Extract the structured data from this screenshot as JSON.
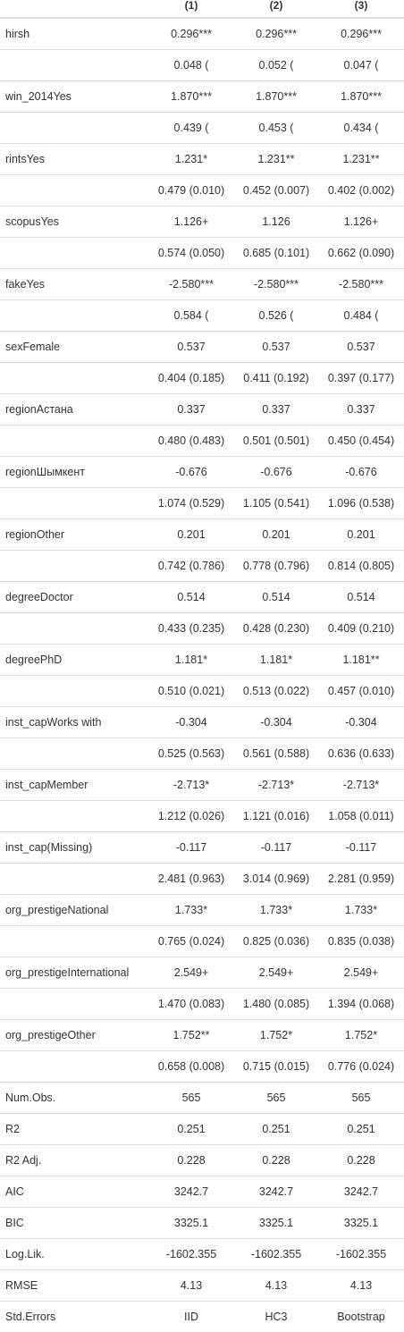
{
  "headers": [
    "",
    "(1)",
    "(2)",
    "(3)"
  ],
  "coef_rows": [
    {
      "label": "hirsh",
      "est": [
        "0.296***",
        "0.296***",
        "0.296***"
      ],
      "se": [
        "0.048 (",
        "0.052 (",
        "0.047 ("
      ]
    },
    {
      "label": "win_2014Yes",
      "est": [
        "1.870***",
        "1.870***",
        "1.870***"
      ],
      "se": [
        "0.439 (",
        "0.453 (",
        "0.434 ("
      ]
    },
    {
      "label": "rintsYes",
      "est": [
        "1.231*",
        "1.231**",
        "1.231**"
      ],
      "se": [
        "0.479 (0.010)",
        "0.452 (0.007)",
        "0.402 (0.002)"
      ]
    },
    {
      "label": "scopusYes",
      "est": [
        "1.126+",
        "1.126",
        "1.126+"
      ],
      "se": [
        "0.574 (0.050)",
        "0.685 (0.101)",
        "0.662 (0.090)"
      ]
    },
    {
      "label": "fakeYes",
      "est": [
        "-2.580***",
        "-2.580***",
        "-2.580***"
      ],
      "se": [
        "0.584 (",
        "0.526 (",
        "0.484 ("
      ]
    },
    {
      "label": "sexFemale",
      "est": [
        "0.537",
        "0.537",
        "0.537"
      ],
      "se": [
        "0.404 (0.185)",
        "0.411 (0.192)",
        "0.397 (0.177)"
      ]
    },
    {
      "label": "regionАстана",
      "est": [
        "0.337",
        "0.337",
        "0.337"
      ],
      "se": [
        "0.480 (0.483)",
        "0.501 (0.501)",
        "0.450 (0.454)"
      ]
    },
    {
      "label": "regionШымкент",
      "est": [
        "-0.676",
        "-0.676",
        "-0.676"
      ],
      "se": [
        "1.074 (0.529)",
        "1.105 (0.541)",
        "1.096 (0.538)"
      ]
    },
    {
      "label": "regionOther",
      "est": [
        "0.201",
        "0.201",
        "0.201"
      ],
      "se": [
        "0.742 (0.786)",
        "0.778 (0.796)",
        "0.814 (0.805)"
      ]
    },
    {
      "label": "degreeDoctor",
      "est": [
        "0.514",
        "0.514",
        "0.514"
      ],
      "se": [
        "0.433 (0.235)",
        "0.428 (0.230)",
        "0.409 (0.210)"
      ]
    },
    {
      "label": "degreePhD",
      "est": [
        "1.181*",
        "1.181*",
        "1.181**"
      ],
      "se": [
        "0.510 (0.021)",
        "0.513 (0.022)",
        "0.457 (0.010)"
      ]
    },
    {
      "label": "inst_capWorks with",
      "est": [
        "-0.304",
        "-0.304",
        "-0.304"
      ],
      "se": [
        "0.525 (0.563)",
        "0.561 (0.588)",
        "0.636 (0.633)"
      ]
    },
    {
      "label": "inst_capMember",
      "est": [
        "-2.713*",
        "-2.713*",
        "-2.713*"
      ],
      "se": [
        "1.212 (0.026)",
        "1.121 (0.016)",
        "1.058 (0.011)"
      ]
    },
    {
      "label": "inst_cap(Missing)",
      "est": [
        "-0.117",
        "-0.117",
        "-0.117"
      ],
      "se": [
        "2.481 (0.963)",
        "3.014 (0.969)",
        "2.281 (0.959)"
      ]
    },
    {
      "label": "org_prestigeNational",
      "est": [
        "1.733*",
        "1.733*",
        "1.733*"
      ],
      "se": [
        "0.765 (0.024)",
        "0.825 (0.036)",
        "0.835 (0.038)"
      ]
    },
    {
      "label": "org_prestigeInternational",
      "est": [
        "2.549+",
        "2.549+",
        "2.549+"
      ],
      "se": [
        "1.470 (0.083)",
        "1.480 (0.085)",
        "1.394 (0.068)"
      ]
    },
    {
      "label": "org_prestigeOther",
      "est": [
        "1.752**",
        "1.752*",
        "1.752*"
      ],
      "se": [
        "0.658 (0.008)",
        "0.715 (0.015)",
        "0.776 (0.024)"
      ]
    }
  ],
  "gof_rows": [
    {
      "label": "Num.Obs.",
      "vals": [
        "565",
        "565",
        "565"
      ]
    },
    {
      "label": "R2",
      "vals": [
        "0.251",
        "0.251",
        "0.251"
      ]
    },
    {
      "label": "R2 Adj.",
      "vals": [
        "0.228",
        "0.228",
        "0.228"
      ]
    },
    {
      "label": "AIC",
      "vals": [
        "3242.7",
        "3242.7",
        "3242.7"
      ]
    },
    {
      "label": "BIC",
      "vals": [
        "3325.1",
        "3325.1",
        "3325.1"
      ]
    },
    {
      "label": "Log.Lik.",
      "vals": [
        "-1602.355",
        "-1602.355",
        "-1602.355"
      ]
    },
    {
      "label": "RMSE",
      "vals": [
        "4.13",
        "4.13",
        "4.13"
      ]
    },
    {
      "label": "Std.Errors",
      "vals": [
        "IID",
        "HC3",
        "Bootstrap"
      ]
    }
  ]
}
